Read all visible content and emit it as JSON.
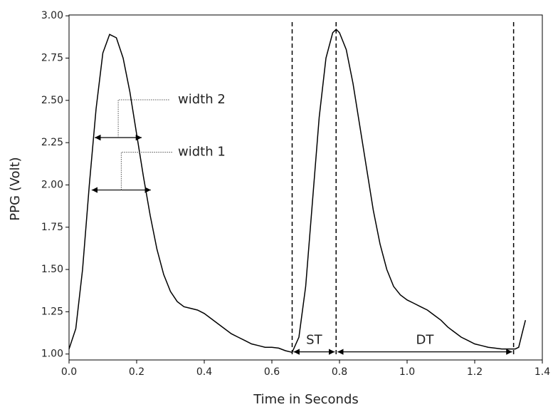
{
  "chart_data": {
    "type": "line",
    "xlabel": "Time in Seconds",
    "ylabel": "PPG (Volt)",
    "xlim": [
      0,
      1.4
    ],
    "ylim": [
      0.965,
      3.005
    ],
    "xticks": [
      {
        "value": 0,
        "label": "0.0"
      },
      {
        "value": 0.2,
        "label": "0.2"
      },
      {
        "value": 0.4,
        "label": "0.4"
      },
      {
        "value": 0.6,
        "label": "0.6"
      },
      {
        "value": 0.8,
        "label": "0.8"
      },
      {
        "value": 1.0,
        "label": "1.0"
      },
      {
        "value": 1.2,
        "label": "1.2"
      },
      {
        "value": 1.4,
        "label": "1.4"
      }
    ],
    "yticks": [
      {
        "value": 1,
        "label": "1.00"
      },
      {
        "value": 1.25,
        "label": "1.25"
      },
      {
        "value": 1.5,
        "label": "1.50"
      },
      {
        "value": 1.75,
        "label": "1.75"
      },
      {
        "value": 2,
        "label": "2.00"
      },
      {
        "value": 2.25,
        "label": "2.25"
      },
      {
        "value": 2.5,
        "label": "2.50"
      },
      {
        "value": 2.75,
        "label": "2.75"
      },
      {
        "value": 3,
        "label": "3.00"
      }
    ],
    "grid": false,
    "color": "#000000",
    "x": [
      0,
      0.02,
      0.04,
      0.06,
      0.08,
      0.1,
      0.12,
      0.14,
      0.16,
      0.18,
      0.2,
      0.22,
      0.24,
      0.26,
      0.28,
      0.3,
      0.32,
      0.34,
      0.36,
      0.38,
      0.4,
      0.42,
      0.44,
      0.46,
      0.48,
      0.5,
      0.52,
      0.54,
      0.56,
      0.58,
      0.6,
      0.62,
      0.64,
      0.66,
      0.68,
      0.7,
      0.72,
      0.74,
      0.76,
      0.78,
      0.79,
      0.8,
      0.82,
      0.84,
      0.86,
      0.88,
      0.9,
      0.92,
      0.94,
      0.96,
      0.98,
      1.0,
      1.02,
      1.04,
      1.06,
      1.08,
      1.1,
      1.12,
      1.14,
      1.16,
      1.18,
      1.2,
      1.22,
      1.24,
      1.26,
      1.28,
      1.3,
      1.32,
      1.33,
      1.34,
      1.35
    ],
    "values": [
      1.03,
      1.15,
      1.5,
      2.0,
      2.45,
      2.78,
      2.89,
      2.87,
      2.75,
      2.55,
      2.3,
      2.05,
      1.82,
      1.62,
      1.47,
      1.37,
      1.31,
      1.28,
      1.27,
      1.26,
      1.24,
      1.21,
      1.18,
      1.15,
      1.12,
      1.1,
      1.08,
      1.06,
      1.05,
      1.04,
      1.04,
      1.035,
      1.02,
      1.01,
      1.1,
      1.4,
      1.9,
      2.4,
      2.75,
      2.9,
      2.92,
      2.9,
      2.8,
      2.6,
      2.35,
      2.1,
      1.85,
      1.65,
      1.5,
      1.4,
      1.35,
      1.32,
      1.3,
      1.28,
      1.26,
      1.23,
      1.2,
      1.16,
      1.13,
      1.1,
      1.08,
      1.06,
      1.05,
      1.04,
      1.035,
      1.03,
      1.03,
      1.03,
      1.04,
      1.12,
      1.2
    ],
    "vlines": [
      0.66,
      0.79,
      1.315
    ],
    "width_annotations": [
      {
        "label": "width 2",
        "x": [
          0.076,
          0.215
        ],
        "y": 2.28
      },
      {
        "label": "width 1",
        "x": [
          0.067,
          0.242
        ],
        "y": 1.97
      }
    ],
    "interval_annotations": [
      {
        "label": "ST",
        "x": [
          0.66,
          0.79
        ],
        "y": 1.013
      },
      {
        "label": "DT",
        "x": [
          0.79,
          1.315
        ],
        "y": 1.013
      }
    ]
  }
}
